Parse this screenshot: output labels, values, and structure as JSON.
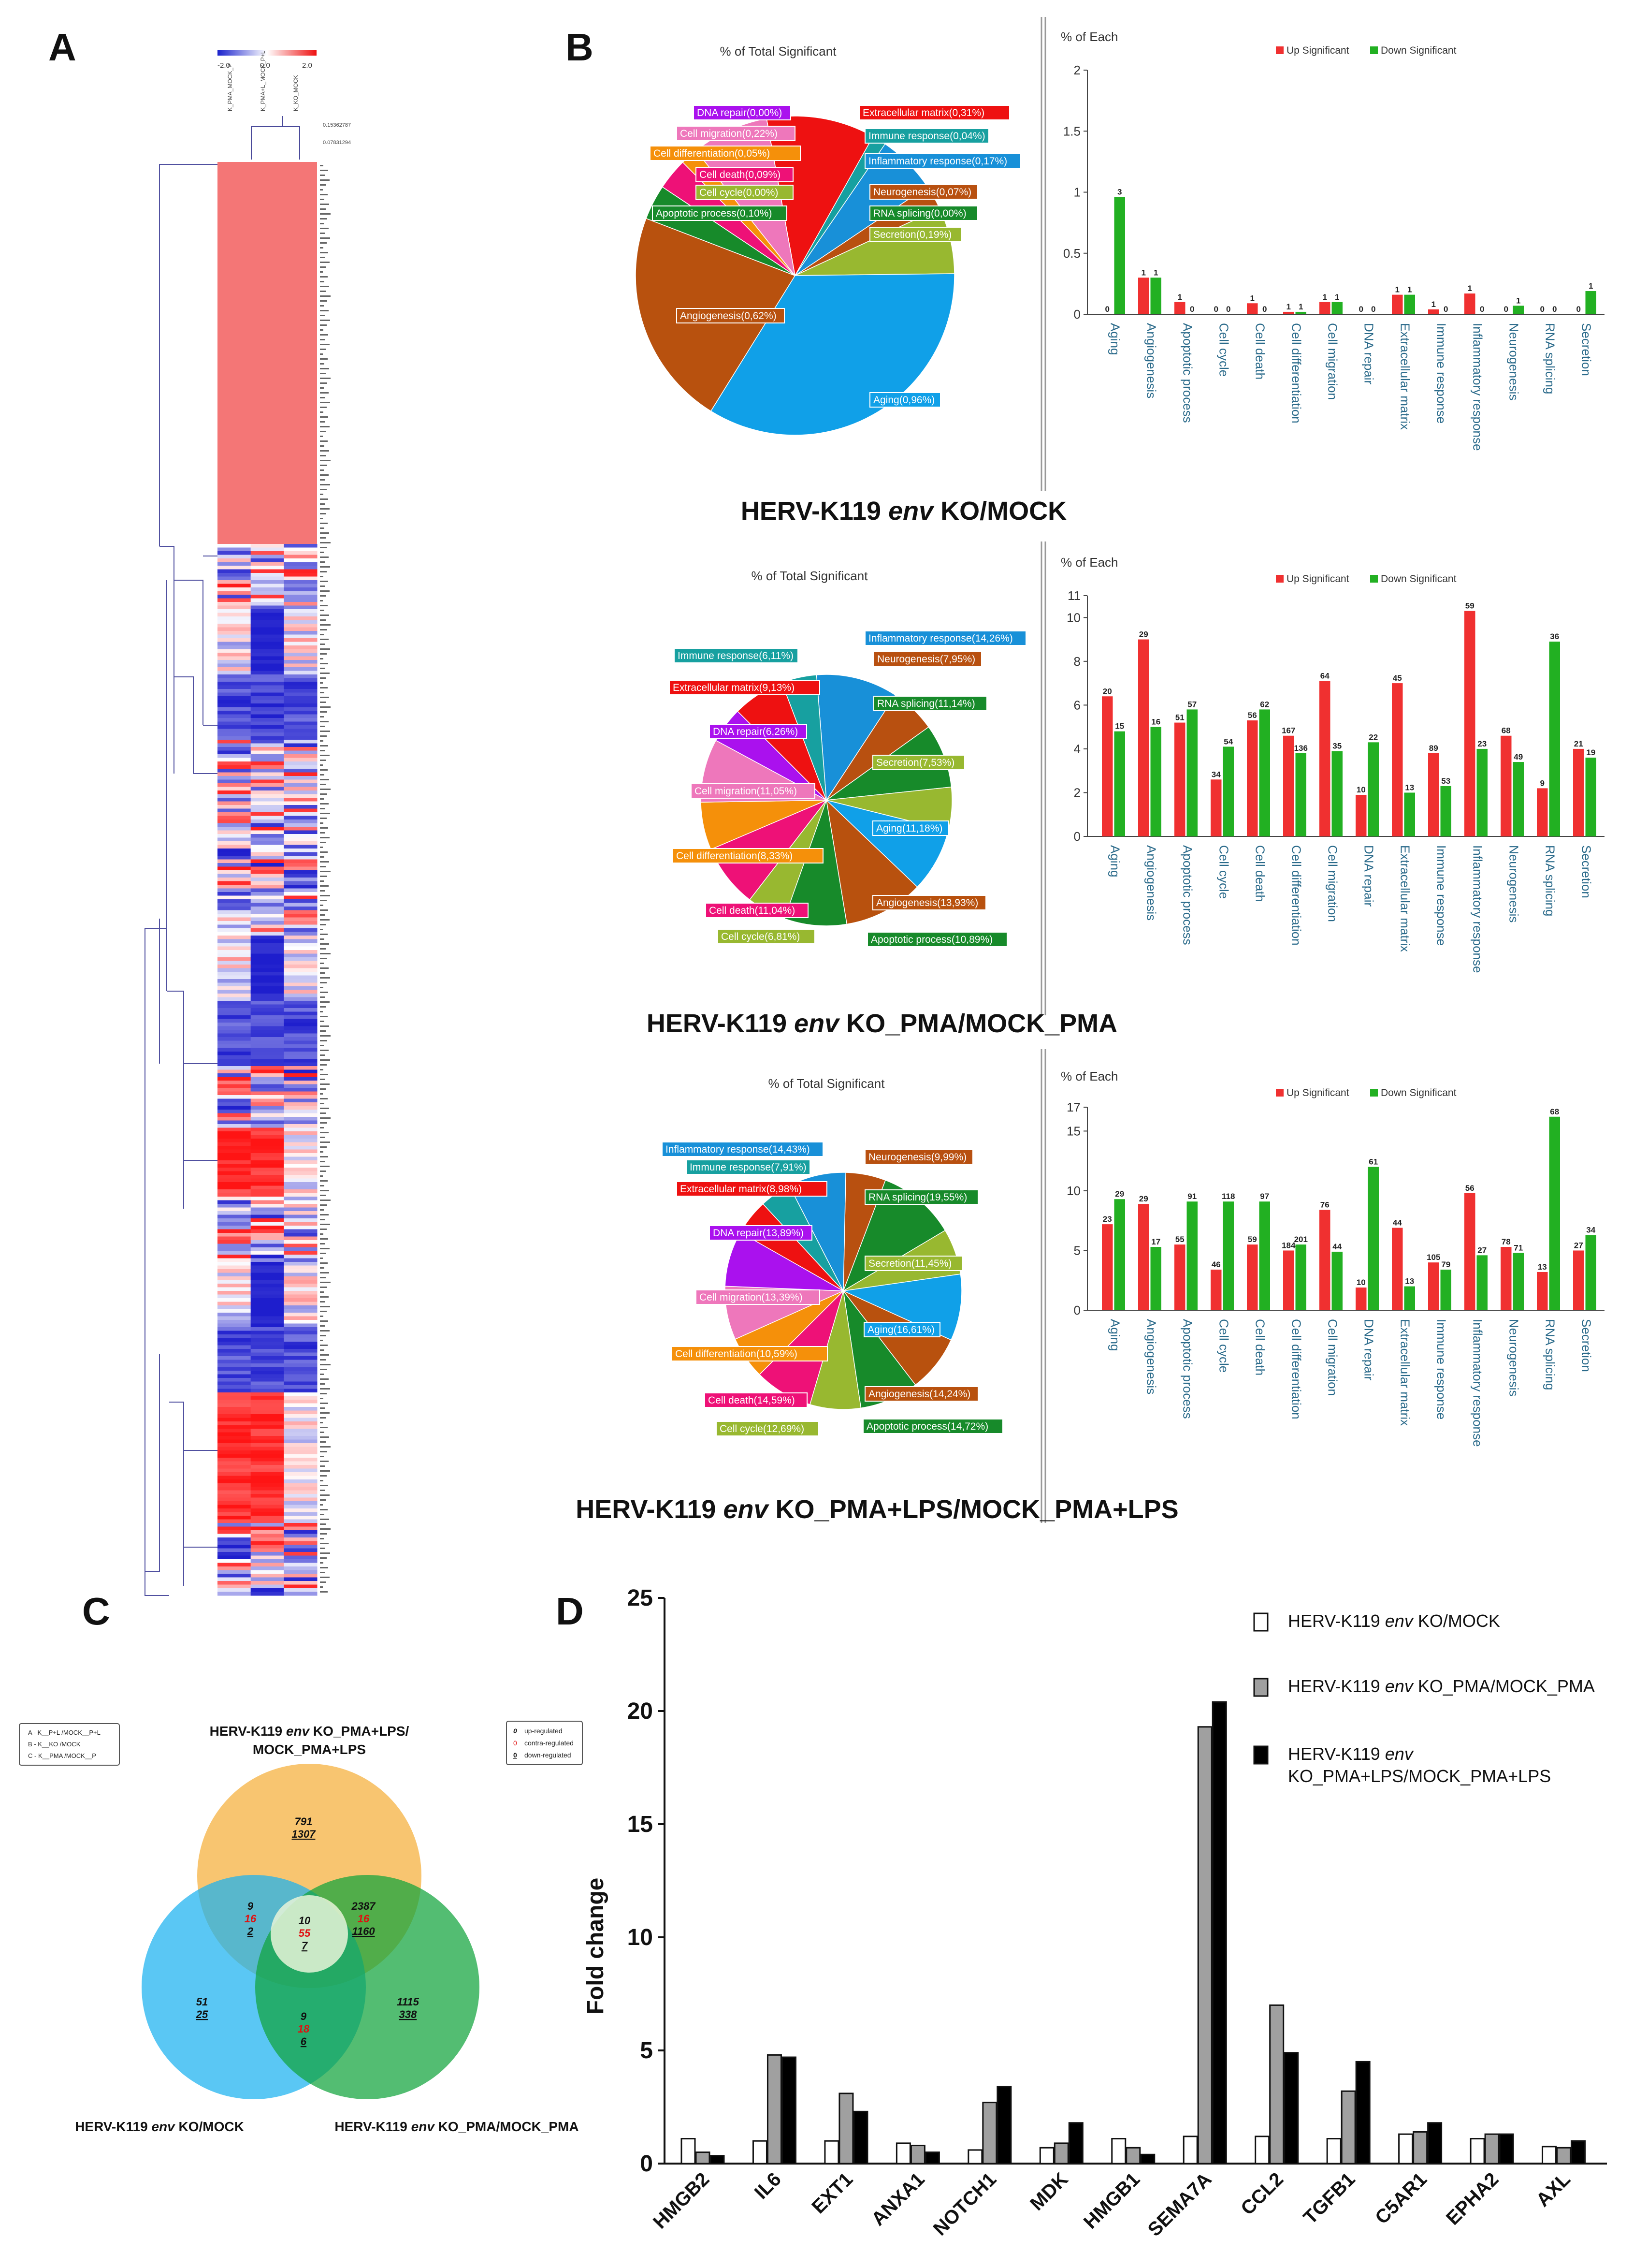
{
  "panels": {
    "a": "A",
    "b": "B",
    "c": "C",
    "d": "D"
  },
  "heatmap": {
    "scale_min": "-2.0",
    "scale_mid": "0.0",
    "scale_max": "2.0",
    "col_labels": [
      "K_PMA_MOCK_P",
      "K_PMA+L_MOCK_P+L",
      "K_KO_MOCK"
    ],
    "tree_labels": [
      "0.15362787",
      "0.07831294"
    ],
    "colors": {
      "high": "#f47676",
      "low": "#2233cc",
      "mid": "#ffffff"
    }
  },
  "pie_title": "% of Total Significant",
  "bar_title": "% of Each",
  "legend_up": "Up Significant",
  "legend_down": "Down Significant",
  "colors": {
    "up": "#f03030",
    "down": "#22b022"
  },
  "comparisons": [
    {
      "title_pre": "HERV-K119 ",
      "title_em": "env",
      "title_post": " KO/MOCK",
      "pie": [
        {
          "label": "Extracellular matrix(0,31%)",
          "value": 0.31,
          "color": "#ee1111"
        },
        {
          "label": "Immune response(0,04%)",
          "value": 0.04,
          "color": "#17a0a0"
        },
        {
          "label": "Inflammatory response(0,17%)",
          "value": 0.17,
          "color": "#1890d8"
        },
        {
          "label": "Neurogenesis(0,07%)",
          "value": 0.07,
          "color": "#b85010"
        },
        {
          "label": "RNA splicing(0,00%)",
          "value": 0.0,
          "color": "#178a2a"
        },
        {
          "label": "Secretion(0,19%)",
          "value": 0.19,
          "color": "#98b830"
        },
        {
          "label": "Aging(0,96%)",
          "value": 0.96,
          "color": "#10a0e8"
        },
        {
          "label": "Angiogenesis(0,62%)",
          "value": 0.62,
          "color": "#b8510e"
        },
        {
          "label": "Apoptotic process(0,10%)",
          "value": 0.1,
          "color": "#178a2a"
        },
        {
          "label": "Cell cycle(0,00%)",
          "value": 0.0,
          "color": "#98b830"
        },
        {
          "label": "Cell death(0,09%)",
          "value": 0.09,
          "color": "#ee1177"
        },
        {
          "label": "Cell differentiation(0,05%)",
          "value": 0.05,
          "color": "#f5900a"
        },
        {
          "label": "Cell migration(0,22%)",
          "value": 0.22,
          "color": "#ee77bb"
        },
        {
          "label": "DNA repair(0,00%)",
          "value": 0.0,
          "color": "#aa11ee"
        }
      ],
      "bars": {
        "ymax": 2,
        "yticks": [
          "0",
          "0.5",
          "1",
          "1.5",
          "2"
        ],
        "categories": [
          "Aging",
          "Angiogenesis",
          "Apoptotic process",
          "Cell cycle",
          "Cell death",
          "Cell differentiation",
          "Cell migration",
          "DNA repair",
          "Extracellular matrix",
          "Immune response",
          "Inflammatory response",
          "Neurogenesis",
          "RNA splicing",
          "Secretion"
        ],
        "up": [
          0,
          0.3,
          0.1,
          0,
          0.09,
          0.02,
          0.1,
          0,
          0.16,
          0.04,
          0.17,
          0,
          0,
          0
        ],
        "down": [
          0.96,
          0.3,
          0,
          0,
          0,
          0.02,
          0.1,
          0,
          0.16,
          0,
          0,
          0.07,
          0,
          0.19
        ],
        "up_labels": [
          "0",
          "1",
          "1",
          "0",
          "1",
          "1",
          "1",
          "0",
          "1",
          "1",
          "1",
          "0",
          "0",
          "0"
        ],
        "down_labels": [
          "3",
          "1",
          "0",
          "0",
          "0",
          "1",
          "1",
          "0",
          "1",
          "0",
          "0",
          "1",
          "0",
          "1"
        ]
      }
    },
    {
      "title_pre": "HERV-K119 ",
      "title_em": "env",
      "title_post": " KO_PMA/MOCK_PMA",
      "pie": [
        {
          "label": "Inflammatory response(14,26%)",
          "value": 14.26,
          "color": "#1890d8"
        },
        {
          "label": "Neurogenesis(7,95%)",
          "value": 7.95,
          "color": "#b85010"
        },
        {
          "label": "RNA splicing(11,14%)",
          "value": 11.14,
          "color": "#178a2a"
        },
        {
          "label": "Secretion(7,53%)",
          "value": 7.53,
          "color": "#98b830"
        },
        {
          "label": "Aging(11,18%)",
          "value": 11.18,
          "color": "#10a0e8"
        },
        {
          "label": "Angiogenesis(13,93%)",
          "value": 13.93,
          "color": "#b8510e"
        },
        {
          "label": "Apoptotic process(10,89%)",
          "value": 10.89,
          "color": "#178a2a"
        },
        {
          "label": "Cell cycle(6,81%)",
          "value": 6.81,
          "color": "#98b830"
        },
        {
          "label": "Cell death(11,04%)",
          "value": 11.04,
          "color": "#ee1177"
        },
        {
          "label": "Cell differentiation(8,33%)",
          "value": 8.33,
          "color": "#f5900a"
        },
        {
          "label": "Cell migration(11,05%)",
          "value": 11.05,
          "color": "#ee77bb"
        },
        {
          "label": "DNA repair(6,26%)",
          "value": 6.26,
          "color": "#aa11ee"
        },
        {
          "label": "Extracellular matrix(9,13%)",
          "value": 9.13,
          "color": "#ee1111"
        },
        {
          "label": "Immune response(6,11%)",
          "value": 6.11,
          "color": "#17a0a0"
        }
      ],
      "bars": {
        "ymax": 11,
        "yticks": [
          "0",
          "2",
          "4",
          "6",
          "8",
          "10",
          "11"
        ],
        "categories": [
          "Aging",
          "Angiogenesis",
          "Apoptotic process",
          "Cell cycle",
          "Cell death",
          "Cell differentiation",
          "Cell migration",
          "DNA repair",
          "Extracellular matrix",
          "Immune response",
          "Inflammatory response",
          "Neurogenesis",
          "RNA splicing",
          "Secretion"
        ],
        "up": [
          6.4,
          9.0,
          5.2,
          2.6,
          5.3,
          4.6,
          7.1,
          1.9,
          7.0,
          3.8,
          10.3,
          4.6,
          2.2,
          4.0
        ],
        "down": [
          4.8,
          5.0,
          5.8,
          4.1,
          5.8,
          3.8,
          3.9,
          4.3,
          2.0,
          2.3,
          4.0,
          3.4,
          8.9,
          3.6
        ],
        "up_labels": [
          "20",
          "29",
          "51",
          "34",
          "56",
          "167",
          "64",
          "10",
          "45",
          "89",
          "59",
          "68",
          "9",
          "21"
        ],
        "down_labels": [
          "15",
          "16",
          "57",
          "54",
          "62",
          "136",
          "35",
          "22",
          "13",
          "53",
          "23",
          "49",
          "36",
          "19"
        ]
      }
    },
    {
      "title_pre": "HERV-K119 ",
      "title_em": "env",
      "title_post": " KO_PMA+LPS/MOCK_PMA+LPS",
      "pie": [
        {
          "label": "Neurogenesis(9,99%)",
          "value": 9.99,
          "color": "#b85010"
        },
        {
          "label": "RNA splicing(19,55%)",
          "value": 19.55,
          "color": "#178a2a"
        },
        {
          "label": "Secretion(11,45%)",
          "value": 11.45,
          "color": "#98b830"
        },
        {
          "label": "Aging(16,61%)",
          "value": 16.61,
          "color": "#10a0e8"
        },
        {
          "label": "Angiogenesis(14,24%)",
          "value": 14.24,
          "color": "#b8510e"
        },
        {
          "label": "Apoptotic process(14,72%)",
          "value": 14.72,
          "color": "#178a2a"
        },
        {
          "label": "Cell cycle(12,69%)",
          "value": 12.69,
          "color": "#98b830"
        },
        {
          "label": "Cell death(14,59%)",
          "value": 14.59,
          "color": "#ee1177"
        },
        {
          "label": "Cell differentiation(10,59%)",
          "value": 10.59,
          "color": "#f5900a"
        },
        {
          "label": "Cell migration(13,39%)",
          "value": 13.39,
          "color": "#ee77bb"
        },
        {
          "label": "DNA repair(13,89%)",
          "value": 13.89,
          "color": "#aa11ee"
        },
        {
          "label": "Extracellular matrix(8,98%)",
          "value": 8.98,
          "color": "#ee1111"
        },
        {
          "label": "Immune response(7,91%)",
          "value": 7.91,
          "color": "#17a0a0"
        },
        {
          "label": "Inflammatory response(14,43%)",
          "value": 14.43,
          "color": "#1890d8"
        }
      ],
      "bars": {
        "ymax": 17,
        "yticks": [
          "0",
          "5",
          "10",
          "15",
          "17"
        ],
        "categories": [
          "Aging",
          "Angiogenesis",
          "Apoptotic process",
          "Cell cycle",
          "Cell death",
          "Cell differentiation",
          "Cell migration",
          "DNA repair",
          "Extracellular matrix",
          "Immune response",
          "Inflammatory response",
          "Neurogenesis",
          "RNA splicing",
          "Secretion"
        ],
        "up": [
          7.2,
          8.9,
          5.5,
          3.4,
          5.5,
          5.0,
          8.4,
          1.9,
          6.9,
          4.0,
          9.8,
          5.3,
          3.2,
          5.0
        ],
        "down": [
          9.3,
          5.3,
          9.1,
          9.1,
          9.1,
          5.5,
          4.9,
          12.0,
          2.0,
          3.4,
          4.6,
          4.8,
          16.2,
          6.3
        ],
        "up_labels": [
          "23",
          "29",
          "55",
          "46",
          "59",
          "184",
          "76",
          "10",
          "44",
          "105",
          "56",
          "78",
          "13",
          "27"
        ],
        "down_labels": [
          "29",
          "17",
          "91",
          "118",
          "97",
          "201",
          "44",
          "61",
          "13",
          "79",
          "27",
          "71",
          "68",
          "34"
        ]
      }
    }
  ],
  "venn": {
    "title_top_pre": "HERV-K119 ",
    "title_top_em": "env",
    "title_top_post": " KO_PMA+LPS/",
    "title_top_line2": "MOCK_PMA+LPS",
    "title_left_pre": "HERV-K119 ",
    "title_left_em": "env",
    "title_left_post": " KO/MOCK",
    "title_right_pre": "HERV-K119 ",
    "title_right_em": "env",
    "title_right_post": " KO_PMA/MOCK_PMA",
    "key_a": "A - K__P+L /MOCK__P+L",
    "key_b": "B - K__KO /MOCK",
    "key_c": "C - K__PMA /MOCK__P",
    "key_up": "up-regulated",
    "key_contra": "contra-regulated",
    "key_down": "down-regulated",
    "key_sym": "0",
    "top": {
      "up": "791",
      "down": "1307"
    },
    "left": {
      "up": "51",
      "down": "25"
    },
    "right": {
      "up": "1115",
      "down": "338"
    },
    "top_left": {
      "up": "9",
      "contra": "16",
      "down": "2"
    },
    "top_right": {
      "up": "2387",
      "contra": "16",
      "down": "1160"
    },
    "center": {
      "up": "10",
      "contra": "55",
      "down": "7"
    },
    "left_right": {
      "up": "9",
      "contra": "18",
      "down": "6"
    }
  },
  "fold_chart": {
    "ylabel": "Fold change",
    "yticks": [
      "0",
      "5",
      "10",
      "15",
      "20",
      "25"
    ],
    "ymax": 25,
    "legend": [
      {
        "pre": "HERV-K119 ",
        "em": "env",
        "post": " KO/MOCK",
        "post2": "",
        "color": "#ffffff"
      },
      {
        "pre": "HERV-K119 ",
        "em": "env",
        "post": " KO_PMA/MOCK_PMA",
        "post2": "",
        "color": "#a0a0a0"
      },
      {
        "pre": "HERV-K119 ",
        "em": "env",
        "post": "",
        "post2": "KO_PMA+LPS/MOCK_PMA+LPS",
        "color": "#000000"
      }
    ]
  },
  "chart_data": {
    "type": "bar",
    "title": "",
    "xlabel": "",
    "ylabel": "Fold change",
    "ylim": [
      0,
      25
    ],
    "categories": [
      "HMGB2",
      "IL6",
      "EXT1",
      "ANXA1",
      "NOTCH1",
      "MDK",
      "HMGB1",
      "SEMA7A",
      "CCL2",
      "TGFB1",
      "C5AR1",
      "EPHA2",
      "AXL"
    ],
    "series": [
      {
        "name": "HERV-K119 env KO/MOCK",
        "values": [
          1.1,
          1.0,
          1.0,
          0.9,
          0.6,
          0.7,
          1.1,
          1.2,
          1.2,
          1.1,
          1.3,
          1.1,
          0.75
        ]
      },
      {
        "name": "HERV-K119 env KO_PMA/MOCK_PMA",
        "values": [
          0.5,
          4.8,
          3.1,
          0.8,
          2.7,
          0.9,
          0.7,
          19.3,
          7.0,
          3.2,
          1.4,
          1.3,
          0.7
        ]
      },
      {
        "name": "HERV-K119 env KO_PMA+LPS/MOCK_PMA+LPS",
        "values": [
          0.35,
          4.7,
          2.3,
          0.5,
          3.4,
          1.8,
          0.4,
          20.4,
          4.9,
          4.5,
          1.8,
          1.3,
          1.0
        ]
      }
    ]
  }
}
